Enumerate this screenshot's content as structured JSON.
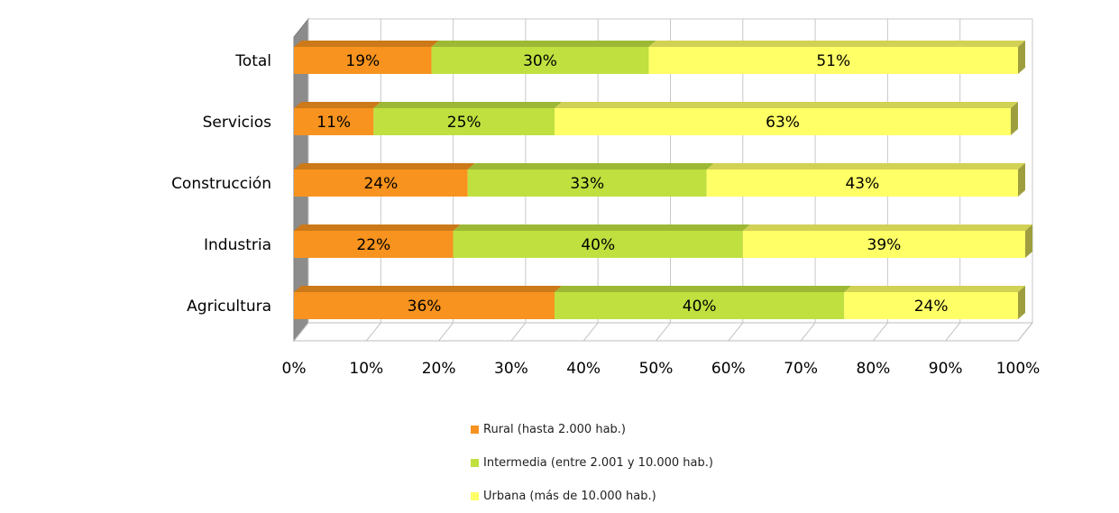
{
  "chart_data": {
    "type": "bar",
    "orientation": "horizontal",
    "stacked": "percent",
    "categories": [
      "Total",
      "Servicios",
      "Construcción",
      "Industria",
      "Agricultura"
    ],
    "series": [
      {
        "name": "Rural (hasta 2.000 hab.)",
        "color": "#F7931E",
        "values": [
          19,
          11,
          24,
          22,
          36
        ],
        "labels": [
          "19%",
          "11%",
          "24%",
          "22%",
          "36%"
        ]
      },
      {
        "name": "Intermedia (entre 2.001 y 10.000 hab.)",
        "color": "#BFE03F",
        "values": [
          30,
          25,
          33,
          40,
          40
        ],
        "labels": [
          "30%",
          "25%",
          "33%",
          "40%",
          "40%"
        ]
      },
      {
        "name": "Urbana (más de 10.000 hab.)",
        "color": "#FFFF66",
        "values": [
          51,
          63,
          43,
          39,
          24
        ],
        "labels": [
          "51%",
          "63%",
          "43%",
          "39%",
          "24%"
        ]
      }
    ],
    "x_ticks": [
      "0%",
      "10%",
      "20%",
      "30%",
      "40%",
      "50%",
      "60%",
      "70%",
      "80%",
      "90%",
      "100%"
    ],
    "xlim": [
      0,
      100
    ],
    "grid": true,
    "legend_position": "bottom"
  }
}
